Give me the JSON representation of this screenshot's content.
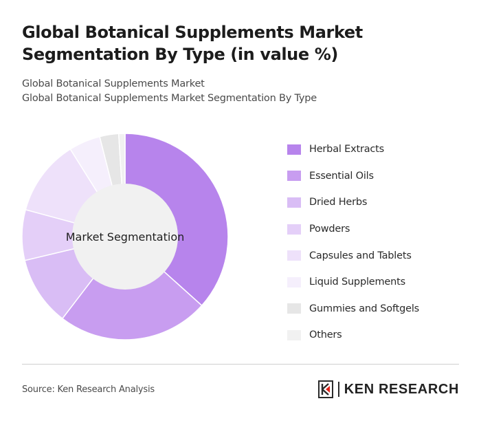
{
  "header": {
    "title": "Global Botanical Supplements Market Segmentation By Type (in value %)",
    "subtitle_1": "Global Botanical Supplements Market",
    "subtitle_2": "Global Botanical Supplements Market Segmentation By Type"
  },
  "chart_data": {
    "type": "pie",
    "style": "donut",
    "center_label": "Market Segmentation",
    "categories": [
      "Herbal Extracts",
      "Essential Oils",
      "Dried Herbs",
      "Powders",
      "Capsules and Tablets",
      "Liquid Supplements",
      "Gummies and Softgels",
      "Others"
    ],
    "values": [
      37,
      24,
      11,
      8,
      12,
      5,
      3,
      1
    ],
    "colors": [
      "#b784ec",
      "#c89df0",
      "#d9bdf5",
      "#e4cff8",
      "#eee1fa",
      "#f5effc",
      "#e6e6e6",
      "#f1f1f1"
    ],
    "legend_position": "right"
  },
  "footer": {
    "source": "Source: Ken Research Analysis",
    "brand": "KEN RESEARCH"
  }
}
